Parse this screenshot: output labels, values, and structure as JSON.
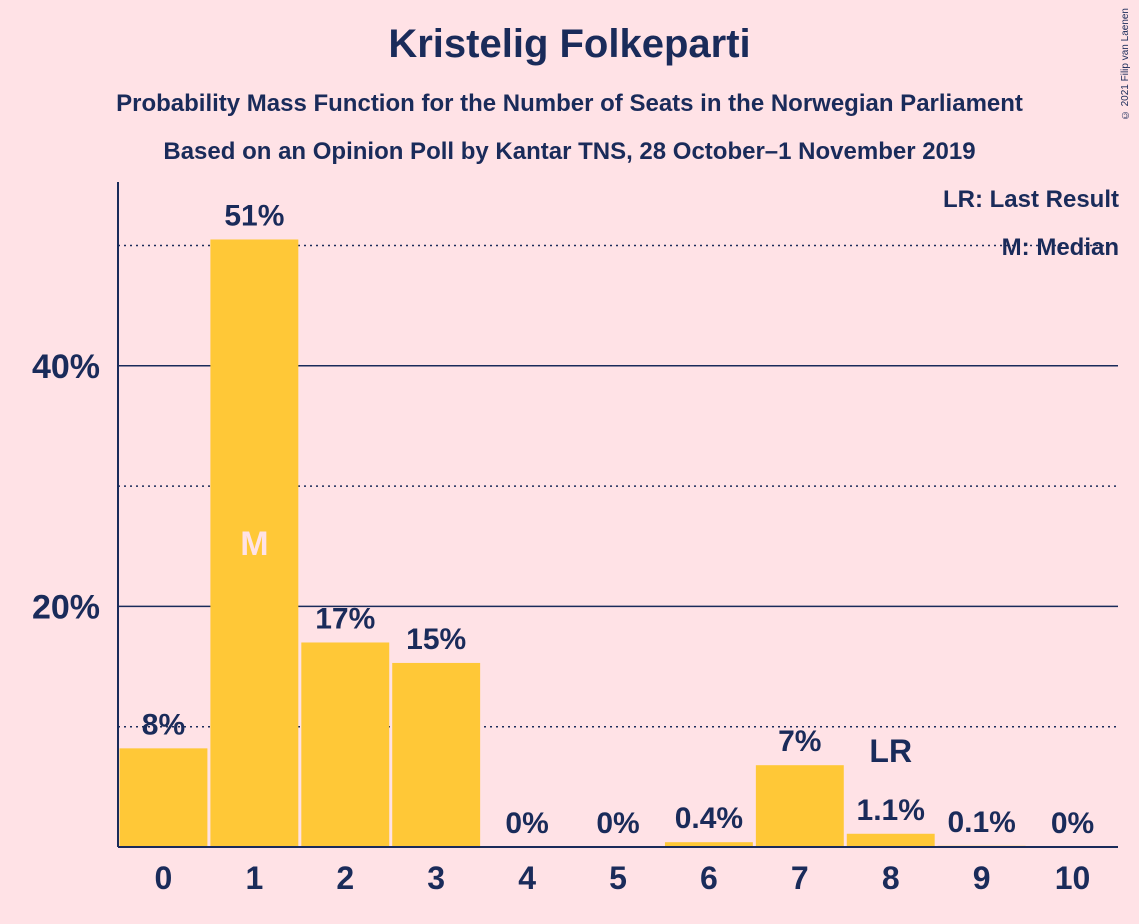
{
  "header": {
    "title": "Kristelig Folkeparti",
    "subtitle": "Probability Mass Function for the Number of Seats in the Norwegian Parliament",
    "subtitle2": "Based on an Opinion Poll by Kantar TNS, 28 October–1 November 2019",
    "copyright": "© 2021 Filip van Laenen"
  },
  "legend": {
    "last_result": "LR: Last Result",
    "median": "M: Median"
  },
  "colors": {
    "background": "#FFE2E6",
    "bar": "#FFC837",
    "text": "#1A2B5A",
    "median_marker": "#FFE2E6"
  },
  "chart_data": {
    "type": "bar",
    "title": "Kristelig Folkeparti",
    "xlabel": "",
    "ylabel": "",
    "categories": [
      "0",
      "1",
      "2",
      "3",
      "4",
      "5",
      "6",
      "7",
      "8",
      "9",
      "10"
    ],
    "values": [
      8.2,
      50.5,
      17.0,
      15.3,
      0.0,
      0.0,
      0.4,
      6.8,
      1.1,
      0.1,
      0.0
    ],
    "data_labels": [
      "8%",
      "51%",
      "17%",
      "15%",
      "0%",
      "0%",
      "0.4%",
      "7%",
      "1.1%",
      "0.1%",
      "0%"
    ],
    "ylim": [
      0,
      55
    ],
    "major_ticks": [
      20,
      40
    ],
    "major_tick_labels": [
      "20%",
      "40%"
    ],
    "minor_gridlines": [
      10,
      30,
      50
    ],
    "median_index": 1,
    "median_label": "M",
    "last_result_index": 8,
    "last_result_label": "LR",
    "grid": true,
    "legend_position": "top-right"
  }
}
